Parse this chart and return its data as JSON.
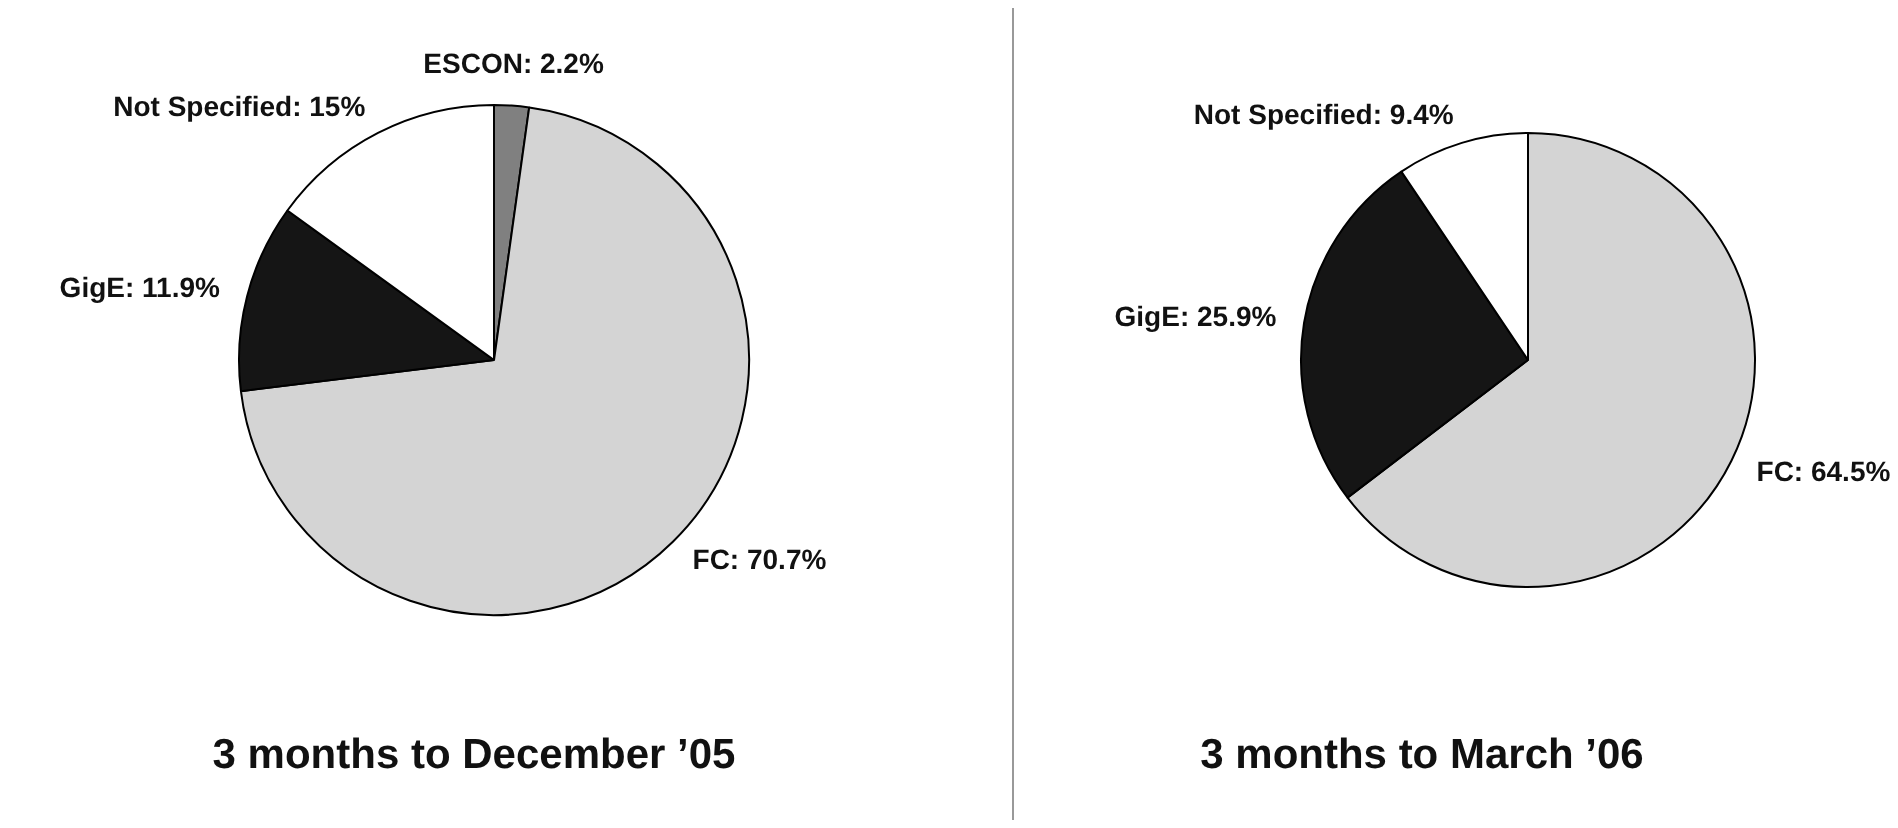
{
  "chart_data": [
    {
      "type": "pie",
      "title": "3 months to December ’05",
      "categories": [
        "ESCON",
        "FC",
        "GigE",
        "Not Specified"
      ],
      "values": [
        2.2,
        70.7,
        11.9,
        15
      ],
      "colors": [
        "#808080",
        "#d4d4d4",
        "#151515",
        "#ffffff"
      ],
      "value_labels": [
        "2.2%",
        "70.7%",
        "11.9%",
        "15%"
      ],
      "legend": false
    },
    {
      "type": "pie",
      "title": "3 months to March ’06",
      "categories": [
        "FC",
        "GigE",
        "Not Specified"
      ],
      "values": [
        64.5,
        25.9,
        9.4
      ],
      "colors": [
        "#d4d4d4",
        "#151515",
        "#ffffff"
      ],
      "value_labels": [
        "64.5%",
        "25.9%",
        "9.4%"
      ],
      "legend": false
    }
  ]
}
